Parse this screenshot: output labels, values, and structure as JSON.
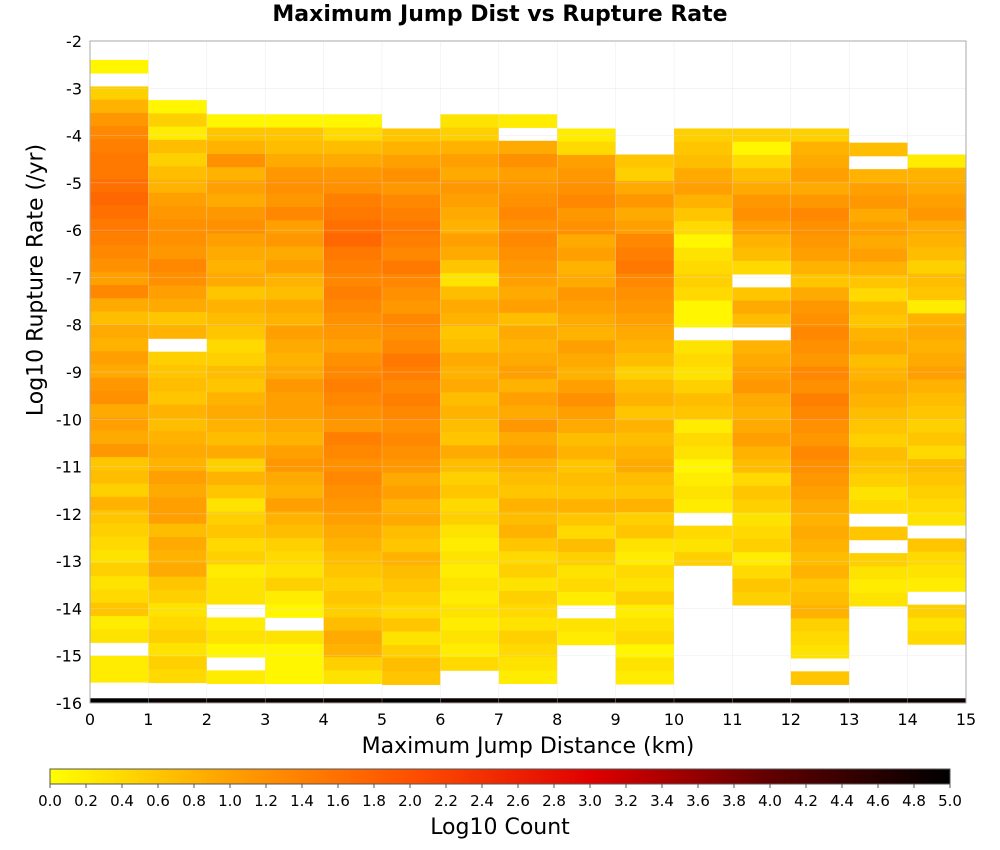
{
  "chart_data": {
    "type": "heatmap",
    "title": "Maximum Jump Dist vs Rupture Rate",
    "xlabel": "Maximum Jump Distance (km)",
    "ylabel": "Log10 Rupture Rate (/yr)",
    "xlim": [
      0,
      15
    ],
    "ylim": [
      -16,
      -2
    ],
    "xticks": [
      "0",
      "1",
      "2",
      "3",
      "4",
      "5",
      "6",
      "7",
      "8",
      "9",
      "10",
      "11",
      "12",
      "13",
      "14",
      "15"
    ],
    "yticks": [
      "-2",
      "-3",
      "-4",
      "-5",
      "-6",
      "-7",
      "-8",
      "-9",
      "-10",
      "-11",
      "-12",
      "-13",
      "-14",
      "-15",
      "-16"
    ],
    "x_bin_width": 1,
    "y_bin_width": 0.28,
    "colorbar": {
      "label": "Log10 Count",
      "range": [
        0,
        5
      ],
      "ticks": [
        "0.0",
        "0.2",
        "0.4",
        "0.6",
        "0.8",
        "1.0",
        "1.2",
        "1.4",
        "1.6",
        "1.8",
        "2.0",
        "2.2",
        "2.4",
        "2.6",
        "2.8",
        "3.0",
        "3.2",
        "3.4",
        "3.6",
        "3.8",
        "4.0",
        "4.2",
        "4.4",
        "4.6",
        "4.8",
        "5.0"
      ],
      "colors": [
        "#ffff00",
        "#ffa000",
        "#ff5000",
        "#e00000",
        "#600000",
        "#000000"
      ]
    },
    "grid": true,
    "columns": [
      {
        "x0": 0,
        "y_top": -2.4,
        "values": [
          0.1,
          null,
          0.5,
          0.8,
          1.1,
          1.3,
          1.4,
          1.5,
          1.5,
          1.6,
          1.7,
          1.6,
          1.5,
          1.4,
          1.3,
          1.2,
          1.0,
          1.3,
          0.9,
          0.7,
          0.9,
          0.8,
          1.0,
          0.9,
          1.1,
          1.2,
          0.9,
          1.0,
          0.9,
          1.1,
          0.6,
          0.7,
          0.5,
          0.8,
          0.6,
          0.5,
          0.4,
          0.3,
          0.5,
          0.3,
          0.4,
          0.6,
          0.2,
          0.3,
          null,
          0.2,
          0.2,
          0.1,
          0.1
        ],
        "bottom": 5.0
      },
      {
        "x0": 1,
        "y_top": -3.25,
        "values": [
          0.1,
          0.5,
          0.2,
          0.7,
          0.5,
          0.7,
          0.8,
          1.0,
          1.1,
          1.2,
          1.2,
          1.1,
          1.3,
          1.2,
          1.0,
          0.9,
          0.6,
          0.8,
          null,
          0.5,
          0.6,
          0.7,
          0.6,
          0.8,
          0.7,
          0.8,
          0.9,
          0.8,
          1.0,
          0.9,
          1.0,
          1.0,
          0.7,
          0.9,
          0.8,
          0.9,
          0.6,
          0.5,
          0.3,
          0.4,
          0.5,
          0.3,
          0.5,
          0.4,
          0.3,
          0.2,
          0.2,
          0.1,
          null
        ],
        "bottom": 4.9
      },
      {
        "x0": 2,
        "y_top": -3.55,
        "values": [
          0.1,
          0.6,
          0.8,
          1.2,
          0.8,
          1.0,
          0.9,
          1.1,
          1.2,
          1.0,
          0.9,
          0.8,
          0.9,
          0.6,
          0.8,
          0.7,
          0.6,
          0.4,
          0.5,
          0.7,
          0.6,
          0.8,
          0.9,
          0.8,
          0.7,
          0.9,
          0.5,
          0.8,
          0.6,
          0.3,
          0.5,
          0.6,
          0.4,
          0.5,
          0.2,
          0.3,
          0.3,
          null,
          0.2,
          0.3,
          0.1,
          null,
          0.2,
          0.3,
          0.1,
          0.2,
          0.1,
          0.2
        ],
        "bottom": 4.9
      },
      {
        "x0": 3,
        "y_top": -3.55,
        "values": [
          0.1,
          0.6,
          0.7,
          0.9,
          1.1,
          1.2,
          1.1,
          1.3,
          1.0,
          1.1,
          0.9,
          1.0,
          0.8,
          0.7,
          0.9,
          0.8,
          1.0,
          0.9,
          0.8,
          0.9,
          1.1,
          1.0,
          1.0,
          0.9,
          0.8,
          1.0,
          1.1,
          0.9,
          0.8,
          1.0,
          0.8,
          0.7,
          0.5,
          0.4,
          0.3,
          0.5,
          0.2,
          0.1,
          null,
          0.3,
          0.1,
          0.1,
          0.1,
          0.1,
          0.1
        ],
        "bottom": 4.9
      },
      {
        "x0": 4,
        "y_top": -3.55,
        "values": [
          0.1,
          0.4,
          0.7,
          0.9,
          1.1,
          1.2,
          1.4,
          1.5,
          1.6,
          1.7,
          1.5,
          1.4,
          1.3,
          1.4,
          1.3,
          1.2,
          1.1,
          1.0,
          1.2,
          1.3,
          1.4,
          1.3,
          1.2,
          1.1,
          1.4,
          1.3,
          1.2,
          1.3,
          1.2,
          1.1,
          1.0,
          0.9,
          0.8,
          0.7,
          0.6,
          0.5,
          0.6,
          0.5,
          0.7,
          0.9,
          0.8,
          0.5,
          0.3,
          0.2,
          null
        ],
        "bottom": 4.9
      },
      {
        "x0": 5,
        "y_top": -3.85,
        "values": [
          0.6,
          0.8,
          1.0,
          1.2,
          1.1,
          1.3,
          1.4,
          1.5,
          1.4,
          1.3,
          1.5,
          1.3,
          1.2,
          1.1,
          1.3,
          1.2,
          1.3,
          1.5,
          1.4,
          1.3,
          1.4,
          1.3,
          1.2,
          1.3,
          1.2,
          1.1,
          0.9,
          1.0,
          0.8,
          0.9,
          0.7,
          0.6,
          0.8,
          0.7,
          0.6,
          0.5,
          0.4,
          0.6,
          0.3,
          0.5,
          0.7,
          0.6,
          0.5,
          0.4
        ],
        "bottom": 5.0
      },
      {
        "x0": 6,
        "y_top": -3.55,
        "values": [
          0.3,
          0.5,
          0.8,
          1.0,
          0.9,
          1.1,
          1.0,
          0.9,
          0.8,
          1.0,
          0.9,
          0.6,
          0.3,
          0.7,
          0.9,
          0.8,
          0.6,
          0.7,
          0.9,
          0.8,
          0.9,
          0.7,
          0.8,
          0.7,
          0.6,
          0.9,
          0.7,
          0.5,
          0.6,
          0.4,
          0.5,
          0.3,
          0.2,
          0.3,
          0.2,
          0.3,
          0.2,
          0.3,
          0.2,
          0.3,
          0.2,
          0.4,
          null,
          0.2,
          0.3,
          0.2
        ],
        "bottom": 4.9
      },
      {
        "x0": 7,
        "y_top": -3.55,
        "values": [
          0.2,
          null,
          0.9,
          1.2,
          1.0,
          1.1,
          1.2,
          1.3,
          1.2,
          1.3,
          1.2,
          1.1,
          1.0,
          0.9,
          1.0,
          0.7,
          0.9,
          0.8,
          0.9,
          1.0,
          0.8,
          1.0,
          0.9,
          1.1,
          0.9,
          1.0,
          0.8,
          0.7,
          0.6,
          0.8,
          0.7,
          0.8,
          0.6,
          0.4,
          0.5,
          0.3,
          0.5,
          0.4,
          0.3,
          0.5,
          0.4,
          0.3,
          0.2,
          0.3,
          0.2,
          null
        ],
        "bottom": 4.9
      },
      {
        "x0": 8,
        "y_top": -3.85,
        "values": [
          0.2,
          0.4,
          1.0,
          1.1,
          1.2,
          1.3,
          1.1,
          1.2,
          0.9,
          1.0,
          0.8,
          0.9,
          1.1,
          1.0,
          0.9,
          0.8,
          1.0,
          0.9,
          0.8,
          1.0,
          1.2,
          1.0,
          0.9,
          0.7,
          0.8,
          0.6,
          0.7,
          0.6,
          0.8,
          0.6,
          0.4,
          0.7,
          0.5,
          0.3,
          0.4,
          0.2,
          null,
          0.3,
          0.2,
          null
        ],
        "bottom": 4.9
      },
      {
        "x0": 9,
        "y_top": -4.4,
        "values": [
          0.6,
          0.5,
          0.9,
          1.1,
          0.9,
          1.0,
          1.3,
          1.4,
          1.5,
          1.3,
          1.2,
          1.1,
          1.0,
          0.9,
          0.8,
          0.7,
          0.5,
          0.7,
          0.8,
          0.6,
          0.8,
          0.7,
          0.8,
          0.9,
          0.7,
          0.6,
          0.8,
          0.5,
          0.6,
          0.3,
          0.2,
          0.4,
          0.3,
          0.5,
          0.2,
          0.3,
          0.4,
          0.1,
          0.3,
          0.2
        ],
        "bottom": 4.9
      },
      {
        "x0": 10,
        "y_top": -3.85,
        "values": [
          0.5,
          0.6,
          0.7,
          0.9,
          1.0,
          0.8,
          0.6,
          0.4,
          0.1,
          0.3,
          0.4,
          0.5,
          0.4,
          0.1,
          0.1,
          null,
          0.3,
          0.4,
          0.3,
          0.5,
          0.7,
          0.6,
          0.2,
          0.4,
          0.3,
          0.1,
          0.2,
          0.3,
          0.2,
          null,
          0.4,
          0.3,
          0.5
        ],
        "bottom": 4.9
      },
      {
        "x0": 11,
        "y_top": -3.85,
        "values": [
          0.5,
          0.1,
          0.4,
          0.7,
          0.9,
          1.1,
          1.2,
          1.0,
          0.8,
          0.7,
          0.4,
          null,
          0.6,
          0.9,
          0.7,
          null,
          0.8,
          0.9,
          1.0,
          1.1,
          0.9,
          0.8,
          0.9,
          1.0,
          0.8,
          0.7,
          0.4,
          0.6,
          0.5,
          0.3,
          0.4,
          0.5,
          0.2,
          0.4,
          0.6,
          0.5
        ],
        "bottom": 4.9
      },
      {
        "x0": 12,
        "y_top": -3.85,
        "values": [
          0.5,
          0.8,
          0.9,
          1.0,
          0.9,
          1.1,
          1.3,
          1.2,
          1.1,
          1.0,
          0.8,
          0.6,
          0.9,
          1.1,
          1.2,
          1.3,
          1.2,
          1.1,
          1.3,
          1.2,
          1.4,
          1.3,
          1.2,
          1.1,
          1.3,
          1.2,
          1.1,
          1.0,
          0.9,
          0.8,
          0.9,
          0.8,
          0.7,
          0.8,
          0.6,
          0.7,
          0.8,
          0.5,
          0.4,
          0.3,
          null,
          0.6
        ],
        "bottom": 4.9
      },
      {
        "x0": 13,
        "y_top": -4.15,
        "values": [
          0.7,
          null,
          0.8,
          1.0,
          1.1,
          0.9,
          1.0,
          0.9,
          1.0,
          0.8,
          0.6,
          0.4,
          0.7,
          0.6,
          0.8,
          0.9,
          0.7,
          0.8,
          0.9,
          0.8,
          0.7,
          0.6,
          0.5,
          0.7,
          0.6,
          0.5,
          0.3,
          0.4,
          null,
          0.6,
          null,
          0.5,
          0.3,
          0.2,
          0.3,
          null
        ],
        "bottom": 4.9
      },
      {
        "x0": 14,
        "y_top": -4.4,
        "values": [
          0.2,
          0.8,
          0.9,
          1.0,
          1.1,
          0.9,
          0.8,
          0.7,
          0.5,
          0.7,
          0.6,
          0.2,
          0.8,
          0.9,
          0.8,
          0.9,
          1.0,
          0.8,
          0.7,
          0.6,
          0.5,
          0.6,
          0.4,
          0.7,
          0.6,
          0.5,
          0.4,
          0.3,
          null,
          0.6,
          0.4,
          0.3,
          0.2,
          null,
          0.5,
          0.3,
          0.4
        ],
        "bottom": 4.9
      }
    ]
  }
}
